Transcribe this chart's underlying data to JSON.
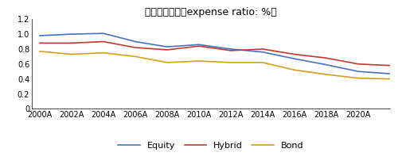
{
  "title": "共同基金费率（expense ratio: %）",
  "years": [
    2000,
    2002,
    2004,
    2006,
    2008,
    2010,
    2012,
    2014,
    2016,
    2018,
    2020,
    2022
  ],
  "equity": [
    0.98,
    1.0,
    1.01,
    0.9,
    0.83,
    0.86,
    0.8,
    0.76,
    0.67,
    0.59,
    0.5,
    0.47
  ],
  "hybrid": [
    0.88,
    0.88,
    0.9,
    0.82,
    0.79,
    0.84,
    0.78,
    0.8,
    0.73,
    0.68,
    0.6,
    0.58
  ],
  "bond": [
    0.77,
    0.73,
    0.75,
    0.7,
    0.62,
    0.64,
    0.62,
    0.62,
    0.52,
    0.46,
    0.41,
    0.4
  ],
  "equity_color": "#4472c4",
  "hybrid_color": "#c0392b",
  "bond_color": "#d4a017",
  "xlim_start": 2000,
  "xlim_end": 2022,
  "ylim": [
    0,
    1.2
  ],
  "yticks": [
    0,
    0.2,
    0.4,
    0.6,
    0.8,
    1.0,
    1.2
  ],
  "xtick_labels": [
    "2000A",
    "2002A",
    "2004A",
    "2006A",
    "2008A",
    "2010A",
    "2012A",
    "2014A",
    "2016A",
    "2018A",
    "2020A"
  ],
  "xtick_positions": [
    2000,
    2002,
    2004,
    2006,
    2008,
    2010,
    2012,
    2014,
    2016,
    2018,
    2020
  ],
  "legend_labels": [
    "Equity",
    "Hybrid",
    "Bond"
  ],
  "title_fontsize": 9,
  "tick_fontsize": 7,
  "legend_fontsize": 8,
  "line_width": 1.2,
  "background_color": "#ffffff"
}
